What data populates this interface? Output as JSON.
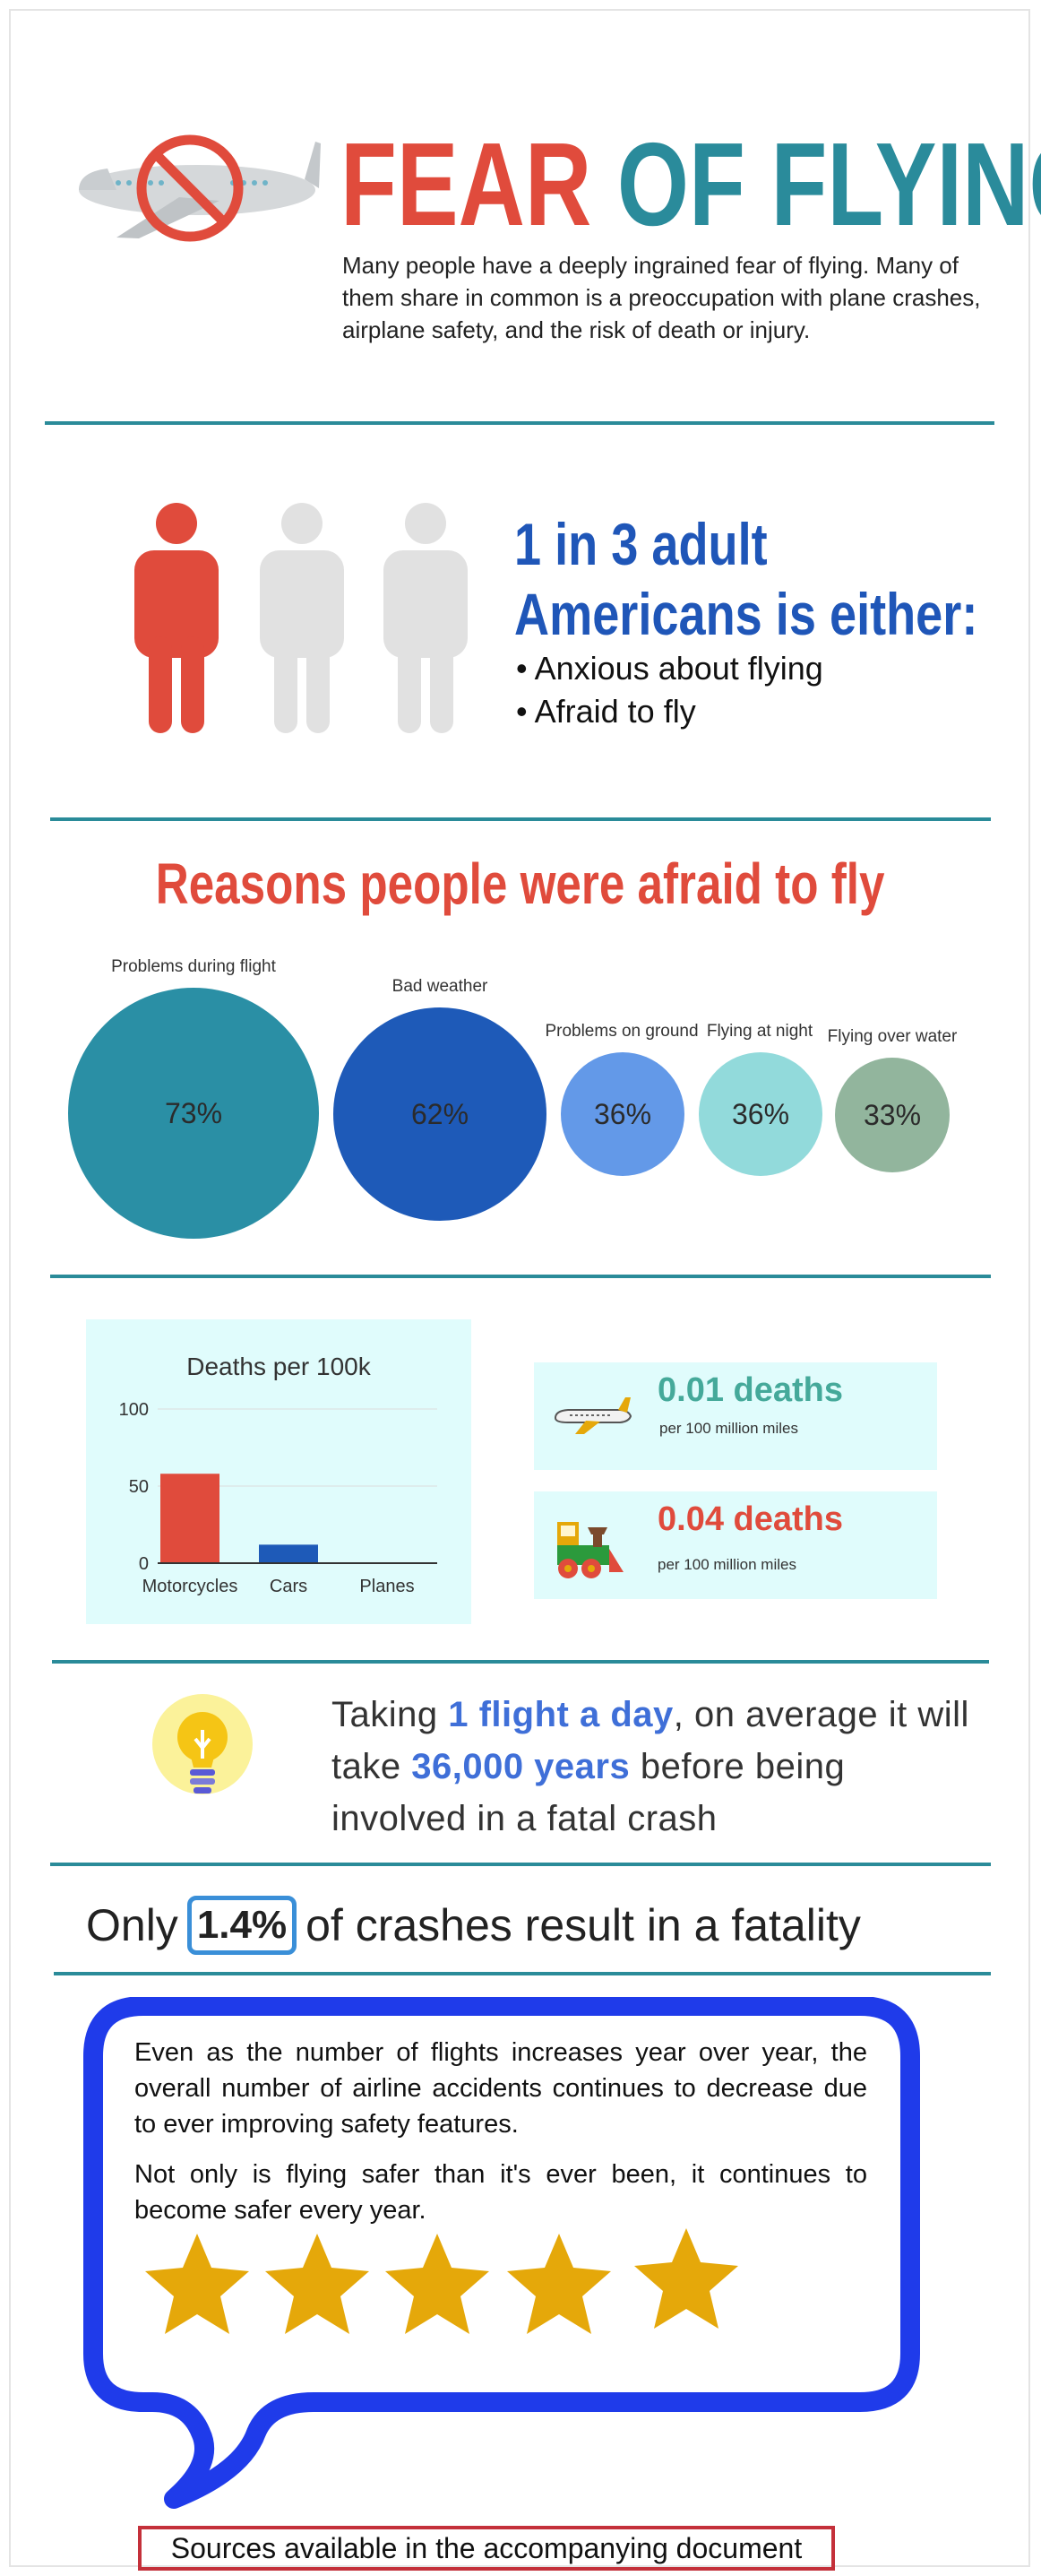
{
  "header": {
    "title_part1": "FEAR",
    "title_part2": "OF FLYING",
    "intro": "Many people have a deeply ingrained fear of flying. Many of them share in common is a preoccupation with plane crashes, airplane safety, and the risk of death or injury."
  },
  "stat": {
    "line1": "1 in 3  adult",
    "line2": "Americans is either:",
    "bullets": [
      "• Anxious about flying",
      "• Afraid to fly"
    ],
    "figures_highlighted": 1,
    "figures_total": 3
  },
  "reasons": {
    "title": "Reasons people were afraid to fly",
    "items": [
      {
        "label": "Problems during flight",
        "value": "73%",
        "color": "#2a8fa5"
      },
      {
        "label": "Bad weather",
        "value": "62%",
        "color": "#1e5ab8"
      },
      {
        "label": "Problems on ground",
        "value": "36%",
        "color": "#6399e8"
      },
      {
        "label": "Flying at night",
        "value": "36%",
        "color": "#92dadb"
      },
      {
        "label": "Flying over water",
        "value": "33%",
        "color": "#92b59d"
      }
    ]
  },
  "chart_data": {
    "type": "bar",
    "title": "Deaths per 100k",
    "categories": [
      "Motorcycles",
      "Cars",
      "Planes"
    ],
    "values": [
      58,
      12,
      0
    ],
    "colors": [
      "#e04b3c",
      "#1e5ab8",
      "#1e5ab8"
    ],
    "yticks": [
      "0",
      "50",
      "100"
    ],
    "ylim": [
      0,
      100
    ]
  },
  "comparisons": [
    {
      "big": "0.01 deaths",
      "small": "per 100 million miles",
      "icon": "airplane-icon",
      "color": "#45a99a"
    },
    {
      "big": "0.04 deaths",
      "small": "per 100 million miles",
      "icon": "train-icon",
      "color": "#e04b3c"
    }
  ],
  "flight_fact": {
    "p1": "Taking ",
    "h1": "1 flight a day",
    "p2": ", on average it will take ",
    "h2": "36,000 years",
    "p3": " before being involved in a fatal crash",
    "icon": "lightbulb-icon"
  },
  "fatality": {
    "prefix": "Only",
    "value": "1.4%",
    "suffix": "of crashes result in a fatality"
  },
  "callout": {
    "para1": "Even as the number of flights increases year over year, the overall number of airline accidents continues to decrease due to ever improving safety features.",
    "para2": "Not only is flying safer than it's ever been, it continues to become safer every year.",
    "stars": 5,
    "star_color": "#e5a80a",
    "border_color": "#1f3bea"
  },
  "sources": "Sources available in the accompanying document"
}
